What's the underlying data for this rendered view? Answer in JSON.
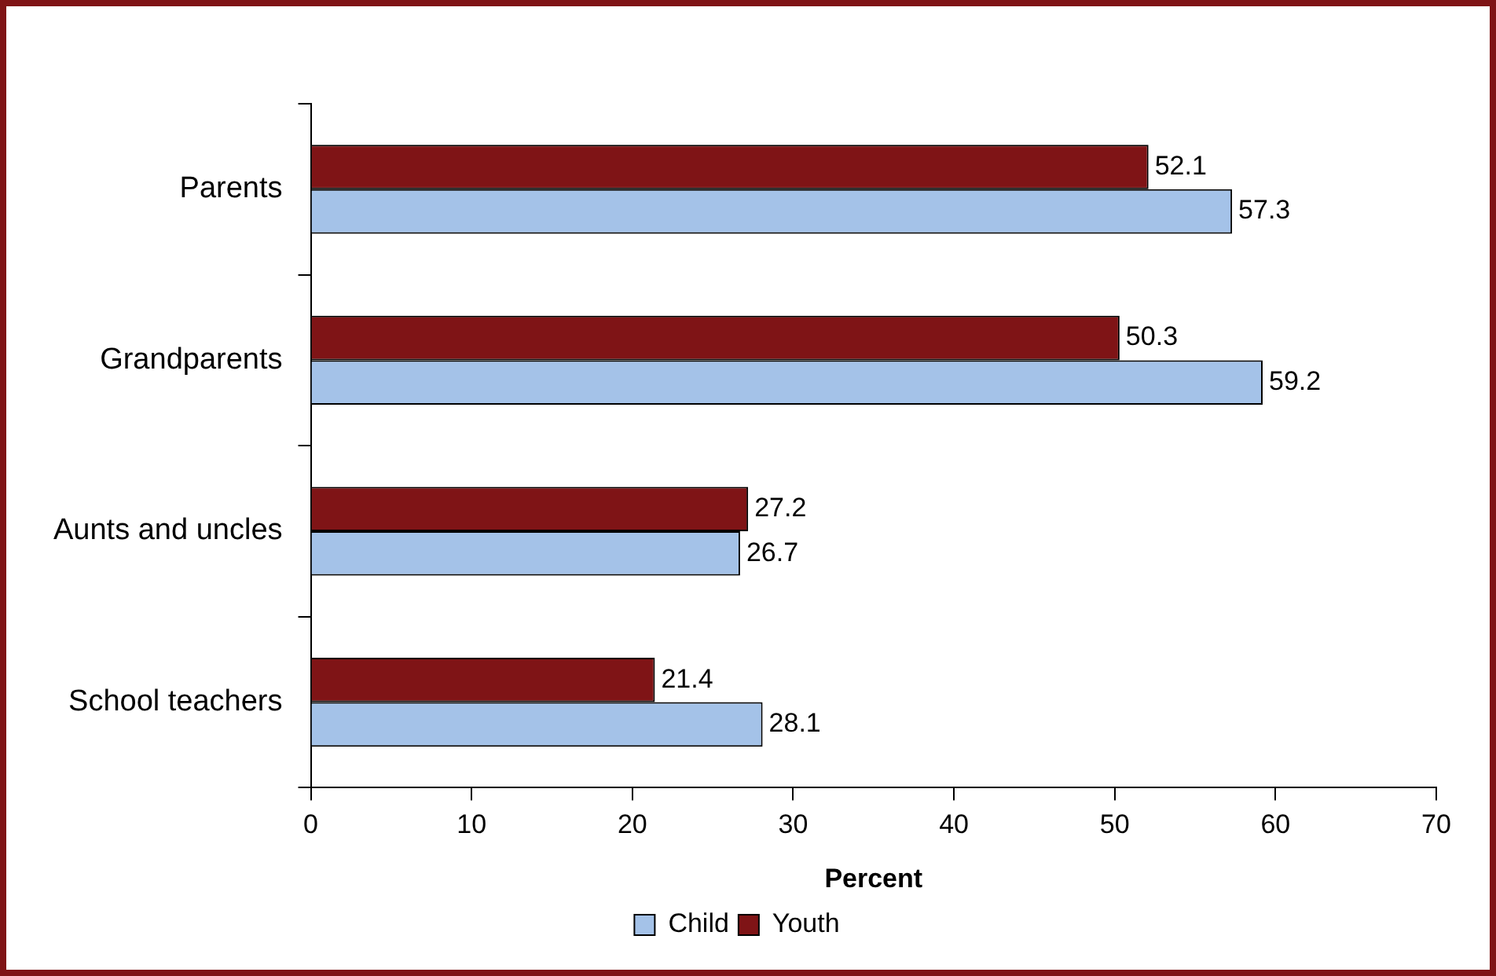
{
  "chart_data": {
    "type": "bar",
    "orientation": "horizontal",
    "xlabel": "Percent",
    "categories": [
      "Parents",
      "Grandparents",
      "Aunts and uncles",
      "School teachers"
    ],
    "series": [
      {
        "name": "Youth",
        "color": "#7f1416",
        "values": [
          52.1,
          50.3,
          27.2,
          21.4
        ]
      },
      {
        "name": "Child",
        "color": "#a4c2e8",
        "values": [
          57.3,
          59.2,
          26.7,
          28.1
        ]
      }
    ],
    "xlim": [
      0,
      70
    ],
    "xticks": [
      0,
      10,
      20,
      30,
      40,
      50,
      60,
      70
    ],
    "grid": false,
    "legend": "bottom",
    "data_labels": true
  }
}
